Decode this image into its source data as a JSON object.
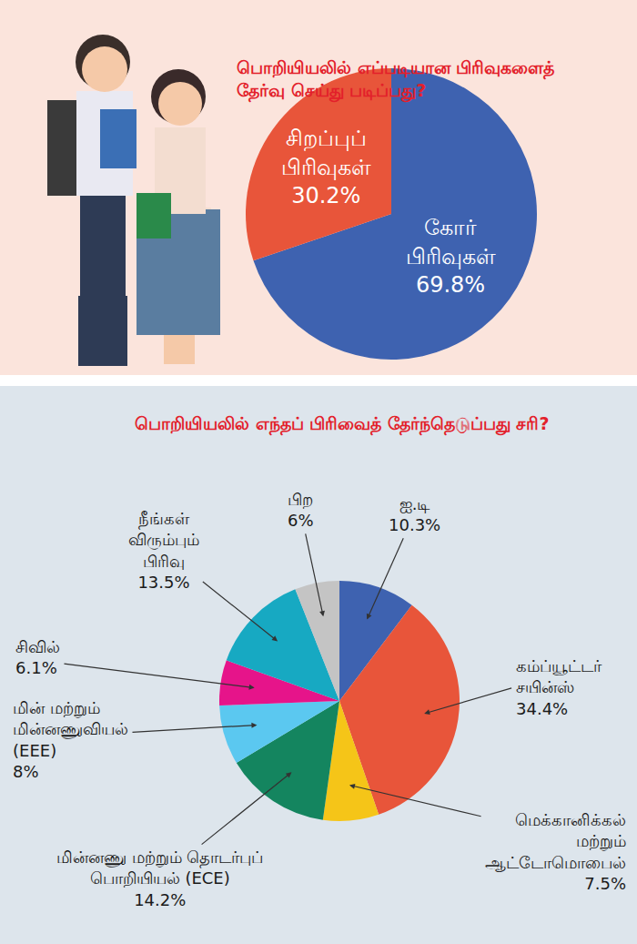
{
  "chart_data": [
    {
      "type": "pie",
      "title": "பொறியியலில் எப்படியான பிரிவுகளைத் தேர்வு செய்து படிப்பது?",
      "categories": [
        "கோர் பிரிவுகள்",
        "சிறப்புப் பிரிவுகள்"
      ],
      "values": [
        69.8,
        30.2
      ],
      "value_labels": [
        "69.8%",
        "30.2%"
      ],
      "colors": [
        "#3e62b0",
        "#e8553a"
      ],
      "data_labels": true
    },
    {
      "type": "pie",
      "title": "பொறியியலில் எந்தப் பிரிவைத் தேர்ந்தெடுப்பது சரி?",
      "categories": [
        "ஐ.டி",
        "கம்ப்யூட்டர் சயின்ஸ்",
        "மெக்கானிக்கல் மற்றும் ஆட்டோமொபைல்",
        "மின்னணு மற்றும் தொடர்புப் பொறியியல் (ECE)",
        "மின் மற்றும் மின்னணுவியல் (EEE)",
        "சிவில்",
        "நீங்கள் விரும்பும் பிரிவு",
        "பிற"
      ],
      "values": [
        10.3,
        34.4,
        7.5,
        14.2,
        8,
        6.1,
        13.5,
        6
      ],
      "value_labels": [
        "10.3%",
        "34.4%",
        "7.5%",
        "14.2%",
        "8%",
        "6.1%",
        "13.5%",
        "6%"
      ],
      "colors": [
        "#3e62b0",
        "#e8553a",
        "#f5c518",
        "#14855f",
        "#5bc8f0",
        "#e6148a",
        "#17a9c2",
        "#c4c4c4"
      ],
      "data_labels": true
    }
  ]
}
